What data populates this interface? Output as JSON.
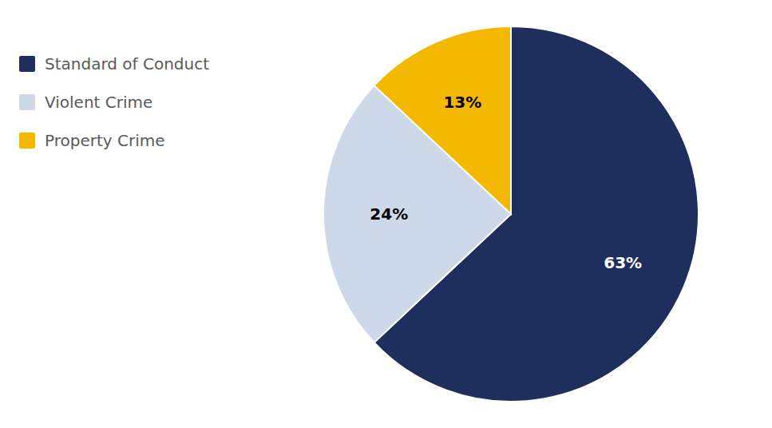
{
  "chart_data": {
    "type": "pie",
    "categories": [
      "Standard of Conduct",
      "Violent Crime",
      "Property Crime"
    ],
    "values": [
      63,
      24,
      13
    ],
    "value_labels": [
      "63%",
      "24%",
      "13%"
    ],
    "colors": [
      "#1e2f5e",
      "#cdd8e8",
      "#f5b800"
    ],
    "data_labels": true,
    "legend": "left"
  }
}
